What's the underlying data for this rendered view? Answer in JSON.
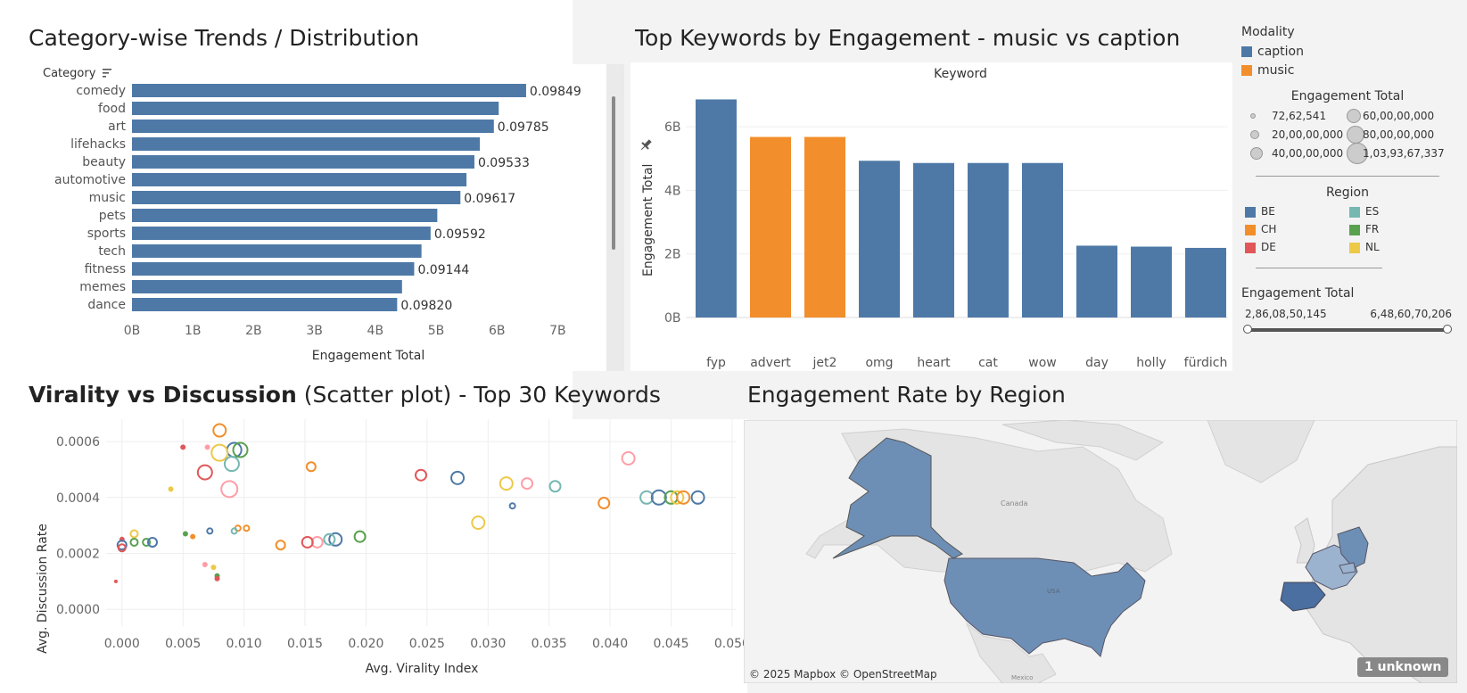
{
  "colors": {
    "caption": "#4e79a7",
    "music": "#f28e2b",
    "BE": "#4e79a7",
    "CH": "#f28e2b",
    "DE": "#e15759",
    "ES": "#76b7b2",
    "FR": "#59a14f",
    "NL": "#edc948"
  },
  "category_chart": {
    "title": "Category-wise Trends / Distribution",
    "header": "Category",
    "xlabel": "Engagement Total",
    "ticks": [
      "0B",
      "1B",
      "2B",
      "3B",
      "4B",
      "5B",
      "6B",
      "7B"
    ],
    "chart_data": {
      "type": "bar",
      "categories": [
        "comedy",
        "food",
        "art",
        "lifehacks",
        "beauty",
        "automotive",
        "music",
        "pets",
        "sports",
        "tech",
        "fitness",
        "memes",
        "dance"
      ],
      "values": [
        6.48,
        6.03,
        5.95,
        5.72,
        5.63,
        5.5,
        5.4,
        5.02,
        4.91,
        4.76,
        4.64,
        4.44,
        4.36
      ],
      "labels": [
        "0.09849",
        "",
        "0.09785",
        "",
        "0.09533",
        "",
        "0.09617",
        "",
        "0.09592",
        "",
        "0.09144",
        "",
        "0.09820"
      ],
      "xlim": [
        0,
        7.7
      ]
    }
  },
  "keyword_chart": {
    "title": "Top Keywords by Engagement - music vs caption",
    "header": "Keyword",
    "ylabel": "Engagement Total",
    "ticks": [
      "0B",
      "2B",
      "4B",
      "6B"
    ],
    "chart_data": {
      "type": "bar",
      "categories": [
        "fyp",
        "advert",
        "jet2",
        "omg",
        "heart",
        "cat",
        "wow",
        "day",
        "holly",
        "fürdich"
      ],
      "values": [
        6.86,
        5.68,
        5.68,
        4.93,
        4.86,
        4.86,
        4.86,
        2.26,
        2.23,
        2.19
      ],
      "modality": [
        "caption",
        "music",
        "music",
        "caption",
        "caption",
        "caption",
        "caption",
        "caption",
        "caption",
        "caption"
      ],
      "ylim": [
        0,
        7.35
      ]
    }
  },
  "legend": {
    "modality_title": "Modality",
    "modality": [
      {
        "name": "caption"
      },
      {
        "name": "music"
      }
    ],
    "size_title": "Engagement Total",
    "sizes": [
      "72,62,541",
      "60,00,00,000",
      "20,00,00,000",
      "80,00,00,000",
      "40,00,00,000",
      "1,03,93,67,337"
    ],
    "region_title": "Region",
    "regions": [
      "BE",
      "ES",
      "CH",
      "FR",
      "DE",
      "NL"
    ],
    "range_title": "Engagement Total",
    "range_min": "2,86,08,50,145",
    "range_max": "6,48,60,70,206"
  },
  "scatter_chart": {
    "title_bold": "Virality vs Discussion",
    "title_rest": " (Scatter plot) - Top 30 Keywords",
    "xlabel": "Avg. Virality Index",
    "ylabel": "Avg. Discussion Rate",
    "xticks": [
      "0.000",
      "0.005",
      "0.010",
      "0.015",
      "0.020",
      "0.025",
      "0.030",
      "0.035",
      "0.040",
      "0.045",
      "0.050"
    ],
    "yticks": [
      "0.0000",
      "0.0002",
      "0.0004",
      "0.0006"
    ],
    "chart_data": {
      "type": "scatter",
      "xlim": [
        -0.0013,
        0.0503
      ],
      "ylim": [
        -6e-05,
        0.00068
      ],
      "points": [
        {
          "x": 0.008,
          "y": 0.00064,
          "r": 7,
          "c": "#f28e2b"
        },
        {
          "x": 0.005,
          "y": 0.00058,
          "r": 2,
          "c": "#e15759"
        },
        {
          "x": 0.007,
          "y": 0.00058,
          "r": 2,
          "c": "#ff9da7"
        },
        {
          "x": 0.0092,
          "y": 0.00057,
          "r": 8,
          "c": "#4e79a7"
        },
        {
          "x": 0.0097,
          "y": 0.00057,
          "r": 8,
          "c": "#59a14f"
        },
        {
          "x": 0.008,
          "y": 0.00056,
          "r": 9,
          "c": "#edc948"
        },
        {
          "x": 0.009,
          "y": 0.00052,
          "r": 8,
          "c": "#76b7b2"
        },
        {
          "x": 0.0068,
          "y": 0.00049,
          "r": 8,
          "c": "#e15759"
        },
        {
          "x": 0.0155,
          "y": 0.00051,
          "r": 5,
          "c": "#f28e2b"
        },
        {
          "x": 0.0088,
          "y": 0.00043,
          "r": 9,
          "c": "#ff9da7"
        },
        {
          "x": 0.004,
          "y": 0.00043,
          "r": 2,
          "c": "#edc948"
        },
        {
          "x": 0.0245,
          "y": 0.00048,
          "r": 6,
          "c": "#e15759"
        },
        {
          "x": 0.0275,
          "y": 0.00047,
          "r": 7,
          "c": "#4e79a7"
        },
        {
          "x": 0.0315,
          "y": 0.00045,
          "r": 7,
          "c": "#edc948"
        },
        {
          "x": 0.0332,
          "y": 0.00045,
          "r": 6,
          "c": "#ff9da7"
        },
        {
          "x": 0.0355,
          "y": 0.00044,
          "r": 6,
          "c": "#76b7b2"
        },
        {
          "x": 0.0415,
          "y": 0.00054,
          "r": 7,
          "c": "#ff9da7"
        },
        {
          "x": 0.0395,
          "y": 0.00038,
          "r": 6,
          "c": "#f28e2b"
        },
        {
          "x": 0.043,
          "y": 0.0004,
          "r": 7,
          "c": "#76b7b2"
        },
        {
          "x": 0.044,
          "y": 0.0004,
          "r": 8,
          "c": "#4e79a7"
        },
        {
          "x": 0.045,
          "y": 0.0004,
          "r": 7,
          "c": "#59a14f"
        },
        {
          "x": 0.0455,
          "y": 0.0004,
          "r": 7,
          "c": "#edc948"
        },
        {
          "x": 0.046,
          "y": 0.0004,
          "r": 7,
          "c": "#f28e2b"
        },
        {
          "x": 0.0472,
          "y": 0.0004,
          "r": 7,
          "c": "#4e79a7"
        },
        {
          "x": 0.032,
          "y": 0.00037,
          "r": 3,
          "c": "#4e79a7"
        },
        {
          "x": 0.0292,
          "y": 0.00031,
          "r": 7,
          "c": "#edc948"
        },
        {
          "x": 0.0195,
          "y": 0.00026,
          "r": 6,
          "c": "#59a14f"
        },
        {
          "x": 0.0175,
          "y": 0.00025,
          "r": 7,
          "c": "#4e79a7"
        },
        {
          "x": 0.017,
          "y": 0.00025,
          "r": 6,
          "c": "#76b7b2"
        },
        {
          "x": 0.016,
          "y": 0.00024,
          "r": 6,
          "c": "#ff9da7"
        },
        {
          "x": 0.0152,
          "y": 0.00024,
          "r": 6,
          "c": "#e15759"
        },
        {
          "x": 0.013,
          "y": 0.00023,
          "r": 5,
          "c": "#f28e2b"
        },
        {
          "x": 0.0095,
          "y": 0.00029,
          "r": 3,
          "c": "#f28e2b"
        },
        {
          "x": 0.0102,
          "y": 0.00029,
          "r": 3,
          "c": "#f28e2b"
        },
        {
          "x": 0.0092,
          "y": 0.00028,
          "r": 3,
          "c": "#76b7b2"
        },
        {
          "x": 0.0072,
          "y": 0.00028,
          "r": 3,
          "c": "#4e79a7"
        },
        {
          "x": 0.0052,
          "y": 0.00027,
          "r": 2,
          "c": "#59a14f"
        },
        {
          "x": 0.0058,
          "y": 0.00026,
          "r": 2,
          "c": "#f28e2b"
        },
        {
          "x": 0.001,
          "y": 0.00027,
          "r": 4,
          "c": "#edc948"
        },
        {
          "x": 0.0,
          "y": 0.00025,
          "r": 2,
          "c": "#e15759"
        },
        {
          "x": 0.001,
          "y": 0.00024,
          "r": 4,
          "c": "#59a14f"
        },
        {
          "x": 0.002,
          "y": 0.00024,
          "r": 4,
          "c": "#59a14f"
        },
        {
          "x": 0.0025,
          "y": 0.00024,
          "r": 5,
          "c": "#4e79a7"
        },
        {
          "x": 0.0,
          "y": 0.00023,
          "r": 5,
          "c": "#4e79a7"
        },
        {
          "x": 0.0,
          "y": 0.00022,
          "r": 4,
          "c": "#e15759"
        },
        {
          "x": 0.0068,
          "y": 0.00016,
          "r": 2,
          "c": "#ff9da7"
        },
        {
          "x": 0.0075,
          "y": 0.00015,
          "r": 2,
          "c": "#edc948"
        },
        {
          "x": 0.0078,
          "y": 0.00012,
          "r": 2,
          "c": "#59a14f"
        },
        {
          "x": 0.0078,
          "y": 0.00011,
          "r": 2,
          "c": "#e15759"
        },
        {
          "x": -0.0005,
          "y": 0.0001,
          "r": 1,
          "c": "#e15759"
        }
      ]
    }
  },
  "map_panel": {
    "title": "Engagement Rate by Region",
    "attribution": "© 2025 Mapbox © OpenStreetMap",
    "unknown": "1 unknown",
    "labels": {
      "canada": "Canada",
      "usa": "USA",
      "mexico": "Mexico"
    },
    "colors": {
      "usa": "#6e8fb5",
      "alaska": "#6e8fb5",
      "europe_dark": "#4a6fa0",
      "europe_light": "#9cb3cf",
      "land": "#e4e4e4",
      "water": "#f3f3f3"
    }
  }
}
